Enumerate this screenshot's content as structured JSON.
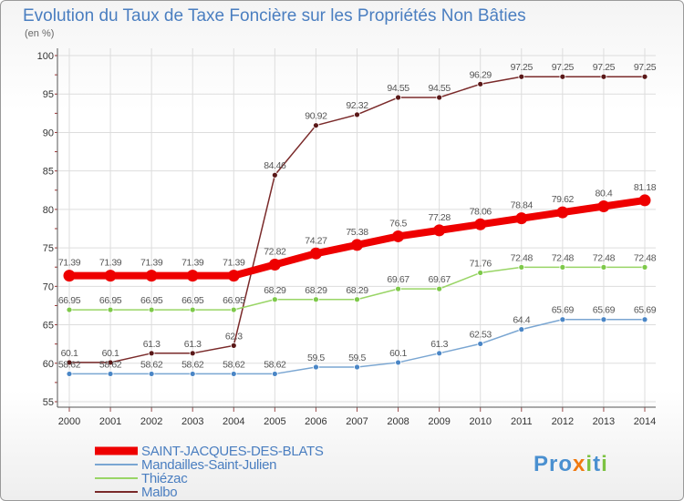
{
  "chart_data": {
    "type": "line",
    "title": "Evolution du Taux de Taxe Foncière sur les Propriétés Non Bâties",
    "unit_label": "(en %)",
    "xlabel": "",
    "ylabel": "",
    "ylim": [
      55,
      100
    ],
    "yticks": [
      55,
      60,
      65,
      70,
      75,
      80,
      85,
      90,
      95,
      100
    ],
    "grid": true,
    "legend_position": "bottom-left",
    "x": [
      "2000",
      "2001",
      "2002",
      "2003",
      "2004",
      "2005",
      "2006",
      "2007",
      "2008",
      "2009",
      "2010",
      "2011",
      "2012",
      "2013",
      "2014"
    ],
    "series": [
      {
        "name": "Malbo",
        "color": "#7a2a2a",
        "marker": "#5a1818",
        "values": [
          60.1,
          60.1,
          61.3,
          61.3,
          62.3,
          84.46,
          90.92,
          92.32,
          94.55,
          94.55,
          96.29,
          97.25,
          97.25,
          97.25,
          97.25
        ],
        "labels": [
          "60.1",
          "60.1",
          "61.3",
          "61.3",
          "62.3",
          "84.46",
          "90.92",
          "92.32",
          "94.55",
          "94.55",
          "96.29",
          "97.25",
          "97.25",
          "97.25",
          "97.25"
        ]
      },
      {
        "name": "Thiézac",
        "color": "#99d566",
        "marker": "#7ec94a",
        "values": [
          66.95,
          66.95,
          66.95,
          66.95,
          66.95,
          68.29,
          68.29,
          68.29,
          69.67,
          69.67,
          71.76,
          72.48,
          72.48,
          72.48,
          72.48
        ],
        "labels": [
          "66.95",
          "66.95",
          "66.95",
          "66.95",
          "66.95",
          "68.29",
          "68.29",
          "68.29",
          "69.67",
          "69.67",
          "71.76",
          "72.48",
          "72.48",
          "72.48",
          "72.48"
        ]
      },
      {
        "name": "Mandailles-Saint-Julien",
        "color": "#7aa6d2",
        "marker": "#4a86c6",
        "values": [
          58.62,
          58.62,
          58.62,
          58.62,
          58.62,
          58.62,
          59.5,
          59.5,
          60.1,
          61.3,
          62.53,
          64.4,
          65.69,
          65.69,
          65.69
        ],
        "labels": [
          "58.62",
          "58.62",
          "58.62",
          "58.62",
          "58.62",
          "58.62",
          "59.5",
          "59.5",
          "60.1",
          "61.3",
          "62.53",
          "64.4",
          "65.69",
          "65.69",
          "65.69"
        ]
      },
      {
        "name": "SAINT-JACQUES-DES-BLATS",
        "color": "#ee0000",
        "marker": "#ee0000",
        "values": [
          71.39,
          71.39,
          71.39,
          71.39,
          71.39,
          72.82,
          74.27,
          75.38,
          76.5,
          77.28,
          78.06,
          78.84,
          79.62,
          80.4,
          81.18
        ],
        "labels": [
          "71.39",
          "71.39",
          "71.39",
          "71.39",
          "71.39",
          "72.82",
          "74.27",
          "75.38",
          "76.5",
          "77.28",
          "78.06",
          "78.84",
          "79.62",
          "80.4",
          "81.18"
        ]
      }
    ],
    "legend": [
      "SAINT-JACQUES-DES-BLATS",
      "Mandailles-Saint-Julien",
      "Thiézac",
      "Malbo"
    ]
  },
  "logo": {
    "text": "Proxiti"
  }
}
